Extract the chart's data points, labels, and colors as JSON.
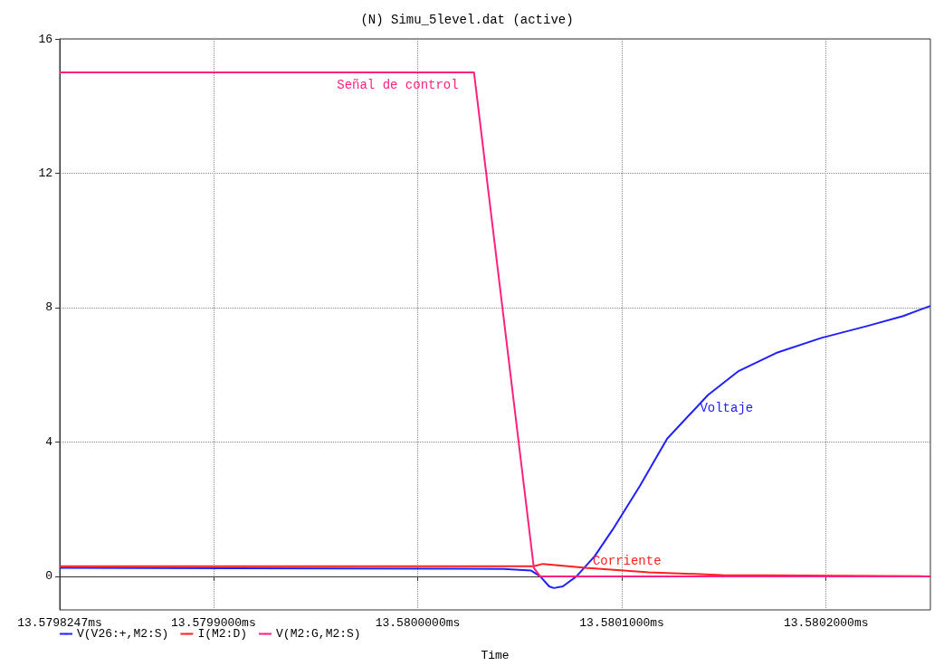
{
  "chart_data": {
    "type": "line",
    "title": "(N) Simu_5level.dat (active)",
    "xlabel": "Time",
    "x": [
      13.5798247,
      13.5800422,
      13.5800556,
      13.58006,
      13.5800644,
      13.5800667,
      13.5800711,
      13.5800778,
      13.5800867,
      13.5800956,
      13.5801089,
      13.5801222,
      13.5801422,
      13.5801569,
      13.5801756,
      13.5801978,
      13.58022,
      13.5802378,
      13.5802511
    ],
    "series": [
      {
        "name": "V(V26:+,M2:S)",
        "color": "#2020ff",
        "values": [
          0.25,
          0.22,
          0.17,
          0.0,
          -0.3,
          -0.35,
          -0.3,
          0.0,
          0.6,
          1.4,
          2.7,
          4.1,
          5.4,
          6.1,
          6.65,
          7.1,
          7.45,
          7.75,
          8.05
        ]
      },
      {
        "name": "I(M2:D)",
        "color": "#ff2020",
        "x": [
          13.5798247,
          13.5800569,
          13.5800613,
          13.5800822,
          13.5801133,
          13.5801489,
          13.5802511
        ],
        "values": [
          0.3,
          0.3,
          0.37,
          0.25,
          0.12,
          0.04,
          0.0
        ]
      },
      {
        "name": "V(M2:G,M2:S)",
        "color": "#ff2080",
        "x": [
          13.5798247,
          13.5800276,
          13.5800569,
          13.58006,
          13.5802511
        ],
        "values": [
          15,
          15,
          0.25,
          0.0,
          0.0
        ]
      }
    ],
    "annotations": [
      {
        "text": "Voltaje",
        "x": 13.5801378,
        "y": 5.0
      },
      {
        "text": "Corriente",
        "x": 13.5800853,
        "y": 0.45
      },
      {
        "text": "Señal de control",
        "x": 13.57996,
        "y": 15
      }
    ],
    "xlim": [
      13.5798247,
      13.5802511
    ],
    "xticks": [
      {
        "value": 13.5798247,
        "label": "13.5798247ms"
      },
      {
        "value": 13.5799,
        "label": "13.5799000ms"
      },
      {
        "value": 13.58,
        "label": "13.5800000ms"
      },
      {
        "value": 13.5801,
        "label": "13.5801000ms"
      },
      {
        "value": 13.5802,
        "label": "13.5802000ms"
      }
    ],
    "ylim": [
      -1,
      16
    ],
    "yticks": [
      0,
      4,
      8,
      12,
      16
    ],
    "grid": true,
    "legend": "bottom left",
    "line_style": "solid"
  }
}
